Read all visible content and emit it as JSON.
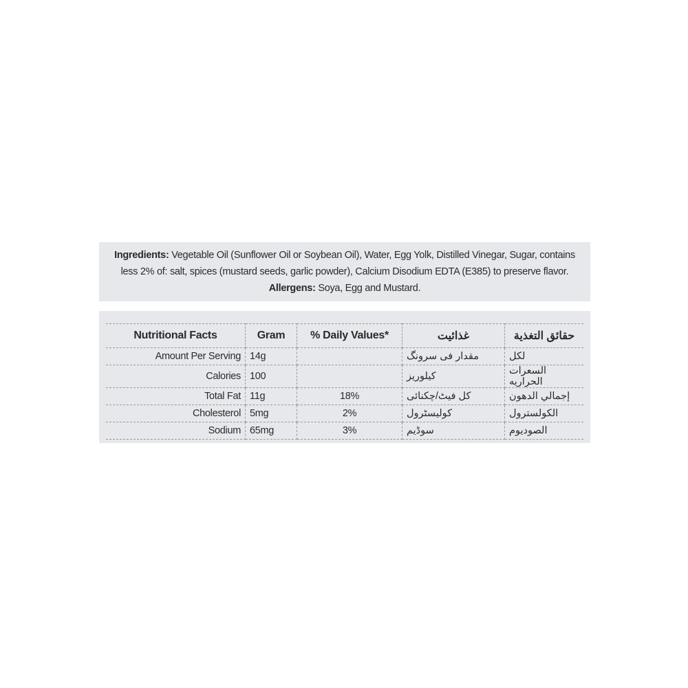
{
  "ingredients": {
    "label": "Ingredients:",
    "text": " Vegetable Oil (Sunflower Oil or Soybean Oil), Water, Egg Yolk, Distilled Vinegar, Sugar, contains less 2% of: salt, spices (mustard seeds, garlic powder), Calcium Disodium EDTA (E385) to preserve flavor. ",
    "allergens_label": "Allergens:",
    "allergens": " Soya, Egg and Mustard."
  },
  "nutrition": {
    "headers": [
      "Nutritional Facts",
      "Gram",
      "% Daily Values*",
      "غذائیت",
      "حقائق التغذية"
    ],
    "rows": [
      [
        "Amount Per Serving",
        "14g",
        "",
        "مقدار فی سرونگ",
        "لكل"
      ],
      [
        "Calories",
        "100",
        "",
        "کیلوریز",
        "السعرات الحراريه"
      ],
      [
        "Total Fat",
        "11g",
        "18%",
        "کل فیٹ/چکنائی",
        "إجمالي الدهون"
      ],
      [
        "Cholesterol",
        "5mg",
        "2%",
        "کولیسٹرول",
        "الكولسترول"
      ],
      [
        "Sodium",
        "65mg",
        "3%",
        "سوڈیم",
        "الصوديوم"
      ]
    ]
  }
}
